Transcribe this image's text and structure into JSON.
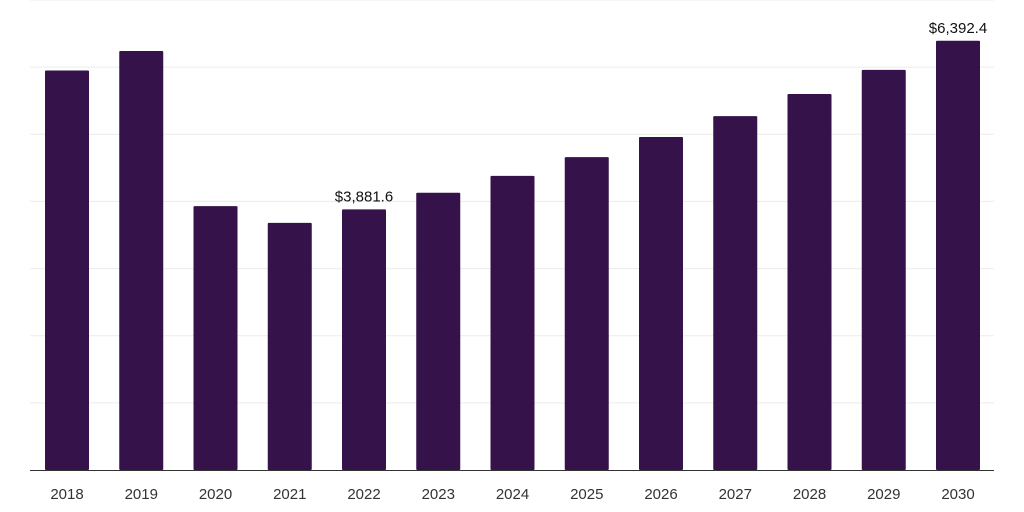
{
  "chart_data": {
    "type": "bar",
    "categories": [
      "2018",
      "2019",
      "2020",
      "2021",
      "2022",
      "2023",
      "2024",
      "2025",
      "2026",
      "2027",
      "2028",
      "2029",
      "2030"
    ],
    "values": [
      5950,
      6240,
      3930,
      3680,
      3881.6,
      4130,
      4380,
      4660,
      4960,
      5270,
      5600,
      5960,
      6392.4
    ],
    "data_labels": [
      "",
      "",
      "",
      "",
      "$3,881.6",
      "",
      "",
      "",
      "",
      "",
      "",
      "",
      "$6,392.4"
    ],
    "ylim": [
      0,
      7000
    ],
    "grid": true,
    "colors": {
      "bar": "#35124a",
      "grid": "#ececec",
      "axis": "#333333"
    }
  }
}
